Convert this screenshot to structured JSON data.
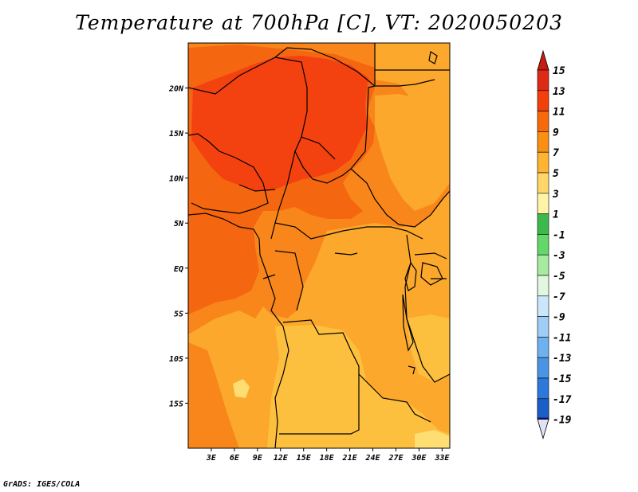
{
  "title": "Temperature at 700hPa [C], VT: 2020050203",
  "credit": "GrADS: IGES/COLA",
  "map": {
    "lon_range": [
      0,
      34
    ],
    "lat_range": [
      -20,
      25
    ],
    "lat_ticks": [
      {
        "lat": 20,
        "label": "20N"
      },
      {
        "lat": 15,
        "label": "15N"
      },
      {
        "lat": 10,
        "label": "10N"
      },
      {
        "lat": 5,
        "label": "5N"
      },
      {
        "lat": 0,
        "label": "EQ"
      },
      {
        "lat": -5,
        "label": "5S"
      },
      {
        "lat": -10,
        "label": "10S"
      },
      {
        "lat": -15,
        "label": "15S"
      }
    ],
    "lon_ticks": [
      {
        "lon": 3,
        "label": "3E"
      },
      {
        "lon": 6,
        "label": "6E"
      },
      {
        "lon": 9,
        "label": "9E"
      },
      {
        "lon": 12,
        "label": "12E"
      },
      {
        "lon": 15,
        "label": "15E"
      },
      {
        "lon": 18,
        "label": "18E"
      },
      {
        "lon": 21,
        "label": "21E"
      },
      {
        "lon": 24,
        "label": "24E"
      },
      {
        "lon": 27,
        "label": "27E"
      },
      {
        "lon": 30,
        "label": "30E"
      },
      {
        "lon": 33,
        "label": "33E"
      }
    ]
  },
  "colorbar": {
    "levels": [
      {
        "label": "15",
        "color": "#dd2a14"
      },
      {
        "label": "13",
        "color": "#f33f0b"
      },
      {
        "label": "11",
        "color": "#f66a0c"
      },
      {
        "label": "9",
        "color": "#fa8f14"
      },
      {
        "label": "7",
        "color": "#fdb432"
      },
      {
        "label": "5",
        "color": "#fed669"
      },
      {
        "label": "3",
        "color": "#fff3a6"
      },
      {
        "label": "1",
        "color": "#3bb94a"
      },
      {
        "label": "-1",
        "color": "#63d86a"
      },
      {
        "label": "-3",
        "color": "#a7eba0"
      },
      {
        "label": "-5",
        "color": "#e0f7e0"
      },
      {
        "label": "-7",
        "color": "#cae6fb"
      },
      {
        "label": "-9",
        "color": "#9fcdf6"
      },
      {
        "label": "-11",
        "color": "#6fb0ee"
      },
      {
        "label": "-13",
        "color": "#4895e4"
      },
      {
        "label": "-15",
        "color": "#2c79db"
      },
      {
        "label": "-17",
        "color": "#1a5ec8"
      },
      {
        "label": "-19",
        "color": "#0d3f9e"
      }
    ],
    "top_color": "#c81c10",
    "bottom_arrow_color": "#dfe3f8",
    "lowest_color": "#0a1466"
  },
  "field_colors": {
    "c15": "#f34210",
    "c13": "#f56610",
    "c11": "#f8861a",
    "c9": "#fba82c",
    "c7": "#fdbf3e",
    "c5": "#fedd73"
  }
}
